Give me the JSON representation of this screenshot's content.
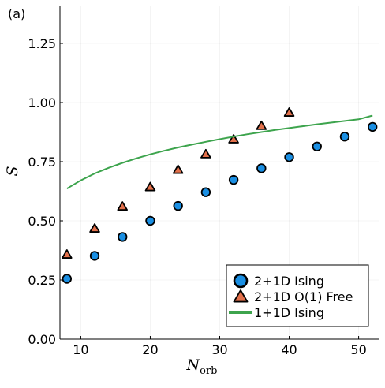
{
  "panel_label": "(a)",
  "chart_data": {
    "type": "scatter",
    "title": "",
    "xlabel": "N",
    "xlabel_subscript": "orb",
    "ylabel": "S",
    "xlim": [
      7,
      53
    ],
    "ylim": [
      0.0,
      1.41
    ],
    "x_ticks": [
      10,
      20,
      30,
      40,
      50
    ],
    "x_tick_labels": [
      "10",
      "20",
      "30",
      "40",
      "50"
    ],
    "y_ticks": [
      0.0,
      0.25,
      0.5,
      0.75,
      1.0,
      1.25
    ],
    "y_tick_labels": [
      "0.00",
      "0.25",
      "0.50",
      "0.75",
      "1.00",
      "1.25"
    ],
    "grid": true,
    "legend_position": "bottom-right",
    "series": [
      {
        "name": "2+1D Ising",
        "kind": "scatter",
        "marker": "circle",
        "color": "#1a8fe3",
        "x": [
          8,
          12,
          16,
          20,
          24,
          28,
          32,
          36,
          40,
          44,
          48,
          52
        ],
        "y": [
          0.255,
          0.352,
          0.432,
          0.5,
          0.563,
          0.621,
          0.673,
          0.722,
          0.769,
          0.814,
          0.856,
          0.897
        ]
      },
      {
        "name": "2+1D O(1) Free",
        "kind": "scatter",
        "marker": "triangle",
        "color": "#e2704b",
        "x": [
          8,
          12,
          16,
          20,
          24,
          28,
          32,
          36,
          40
        ],
        "y": [
          0.356,
          0.466,
          0.559,
          0.641,
          0.714,
          0.78,
          0.843,
          0.9,
          0.956
        ]
      },
      {
        "name": "1+1D Ising",
        "kind": "line",
        "color": "#3da44d",
        "x": [
          8,
          10,
          12,
          14,
          16,
          18,
          20,
          22,
          24,
          26,
          28,
          30,
          32,
          34,
          36,
          38,
          40,
          42,
          44,
          46,
          48,
          50,
          52
        ],
        "y": [
          0.636,
          0.671,
          0.7,
          0.724,
          0.745,
          0.764,
          0.781,
          0.796,
          0.81,
          0.822,
          0.834,
          0.845,
          0.856,
          0.866,
          0.875,
          0.884,
          0.892,
          0.9,
          0.908,
          0.915,
          0.922,
          0.929,
          0.945
        ]
      }
    ]
  }
}
